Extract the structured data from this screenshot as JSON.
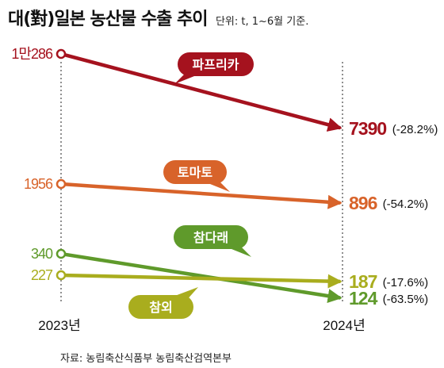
{
  "title": "대(對)일본 농산물 수출 추이",
  "unit_note": "단위: t, 1~6월 기준.",
  "source": "자료: 농림축산식품부 농림축산검역본부",
  "chart_data": {
    "type": "line",
    "title": "대(對)일본 농산물 수출 추이",
    "unit": "단위: t, 1~6월 기준.",
    "categories": [
      "2023년",
      "2024년"
    ],
    "series": [
      {
        "name": "파프리카",
        "values": [
          10286,
          7390
        ],
        "start_label": "1만286",
        "end_label": "7390",
        "change": "(-28.2%)",
        "color": "#a5121e"
      },
      {
        "name": "토마토",
        "values": [
          1956,
          896
        ],
        "start_label": "1956",
        "end_label": "896",
        "change": "(-54.2%)",
        "color": "#d8632a"
      },
      {
        "name": "참다래",
        "values": [
          340,
          124
        ],
        "start_label": "340",
        "end_label": "124",
        "change": "(-63.5%)",
        "color": "#5f9a2b"
      },
      {
        "name": "참외",
        "values": [
          227,
          187
        ],
        "start_label": "227",
        "end_label": "187",
        "change": "(-17.6%)",
        "color": "#a9ad1e"
      }
    ]
  }
}
